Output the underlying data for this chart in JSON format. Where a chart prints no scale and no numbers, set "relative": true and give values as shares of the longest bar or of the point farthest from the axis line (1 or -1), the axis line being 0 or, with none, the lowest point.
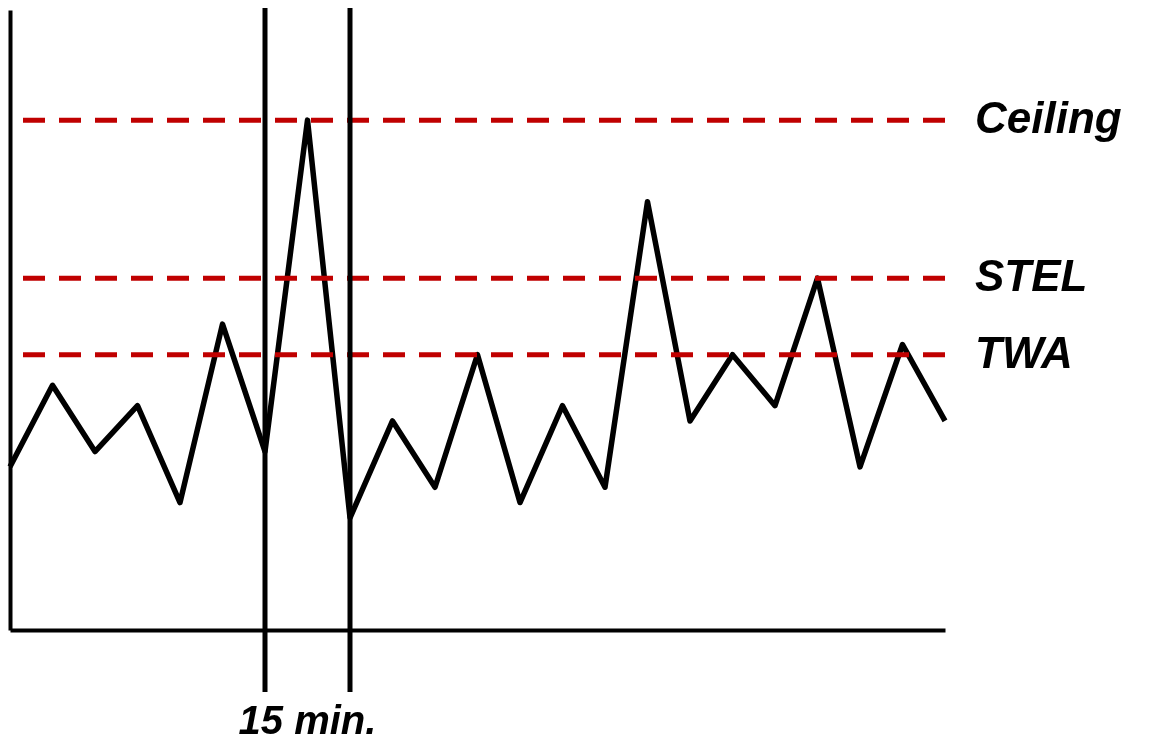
{
  "chart_data": {
    "type": "line",
    "relative": true,
    "marker": "none",
    "line_style": "solid",
    "categories": [
      null,
      null,
      null,
      null,
      null,
      null,
      null,
      null,
      null,
      null,
      null,
      null,
      null,
      null,
      null,
      null,
      null,
      null,
      null,
      null,
      null,
      null,
      null
    ],
    "series": [
      {
        "color": "#000000",
        "values": [
          0.32,
          0.48,
          0.35,
          0.44,
          0.25,
          0.6,
          0.35,
          1,
          0.22,
          0.41,
          0.28,
          0.54,
          0.25,
          0.44,
          0.28,
          0.84,
          0.41,
          0.54,
          0.44,
          0.69,
          0.32,
          0.56,
          0.41
        ]
      }
    ],
    "ref_lines": [
      {
        "axis": "y",
        "value": 1,
        "label": "Ceiling",
        "color": "#c00000",
        "line_style": "dashed"
      },
      {
        "axis": "y",
        "value": 0.69,
        "label": "STEL",
        "color": "#c00000",
        "line_style": "dashed"
      },
      {
        "axis": "y",
        "value": 0.54,
        "label": "TWA",
        "color": "#c00000",
        "line_style": "dashed"
      }
    ],
    "annotations": [
      "15 min."
    ]
  }
}
